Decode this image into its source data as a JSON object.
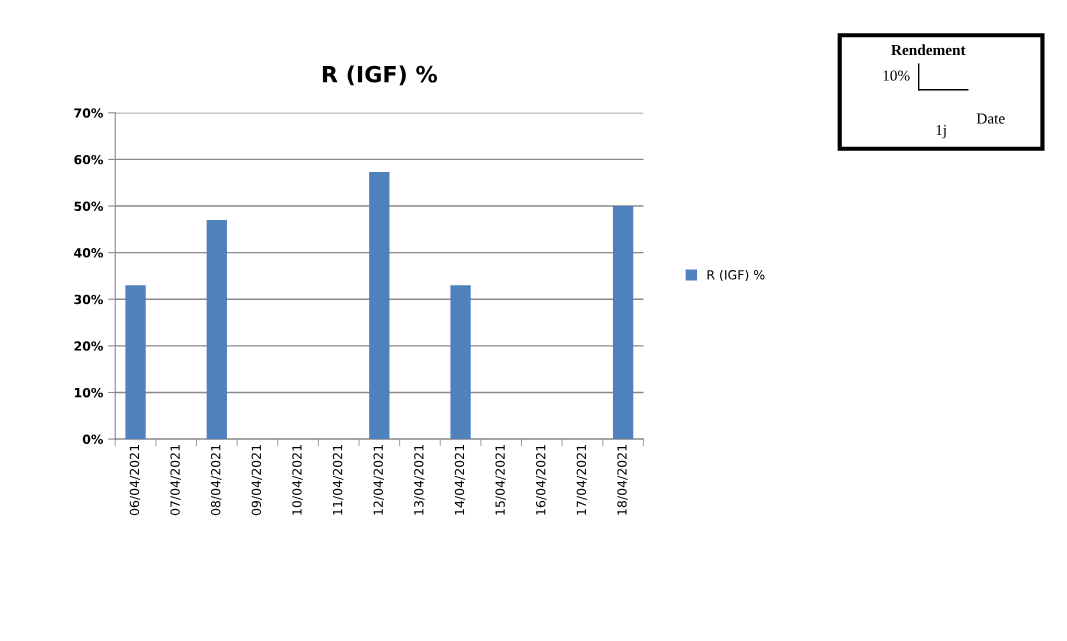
{
  "chart_data": {
    "type": "bar",
    "title": "R (IGF) %",
    "categories": [
      "06/04/2021",
      "07/04/2021",
      "08/04/2021",
      "09/04/2021",
      "10/04/2021",
      "11/04/2021",
      "12/04/2021",
      "13/04/2021",
      "14/04/2021",
      "15/04/2021",
      "16/04/2021",
      "17/04/2021",
      "18/04/2021"
    ],
    "series": [
      {
        "name": "R (IGF) %",
        "color": "#4f81bd",
        "values": [
          33,
          null,
          47,
          null,
          null,
          null,
          57.3,
          null,
          33,
          null,
          null,
          null,
          50
        ]
      }
    ],
    "ylim": [
      0,
      70
    ],
    "yticks": [
      {
        "value": 0,
        "label": "0%"
      },
      {
        "value": 10,
        "label": "10%"
      },
      {
        "value": 20,
        "label": "20%"
      },
      {
        "value": 30,
        "label": "30%"
      },
      {
        "value": 40,
        "label": "40%"
      },
      {
        "value": 50,
        "label": "50%"
      },
      {
        "value": 60,
        "label": "60%"
      },
      {
        "value": 70,
        "label": "70%"
      }
    ],
    "grid": "y",
    "legend": "right",
    "annotations": [
      "Rendement",
      "10%",
      "Date",
      "1j"
    ]
  }
}
